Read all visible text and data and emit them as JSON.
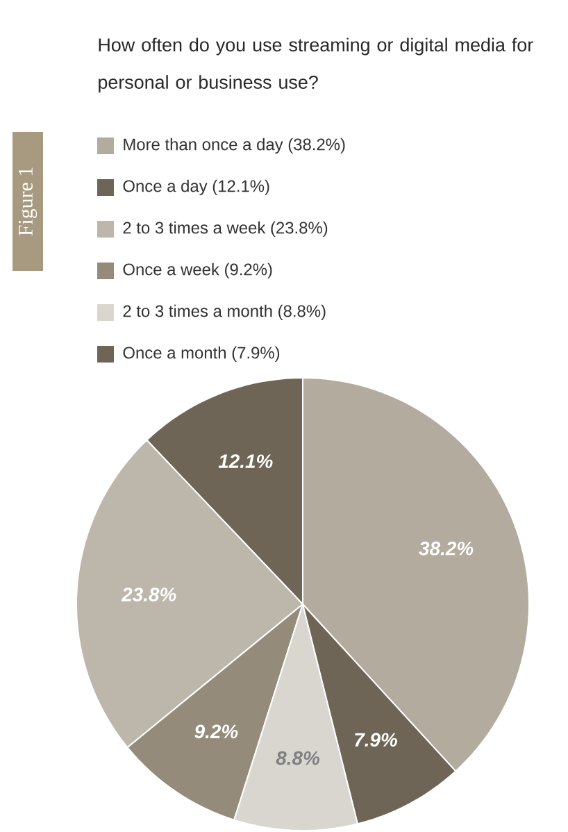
{
  "chart_data": {
    "type": "pie",
    "title": "How often do you use streaming or digital media for personal or business use?",
    "categories": [
      "More than once a day (38.2%)",
      "Once a day (12.1%)",
      "2 to 3 times a week (23.8%)",
      "Once a week (9.2%)",
      "2 to 3 times a month (8.8%)",
      "Once a month (7.9%)"
    ],
    "values": [
      38.2,
      12.1,
      23.8,
      9.2,
      8.8,
      7.9
    ],
    "colors": [
      "#b3ab9d",
      "#6f6556",
      "#bdb7ab",
      "#958b7b",
      "#d9d6cf",
      "#6f6556"
    ],
    "value_labels": [
      "38.2%",
      "12.1%",
      "23.8%",
      "9.2%",
      "8.8%",
      "7.9%"
    ],
    "legend": "top",
    "annotations": [
      "Figure 1"
    ]
  }
}
